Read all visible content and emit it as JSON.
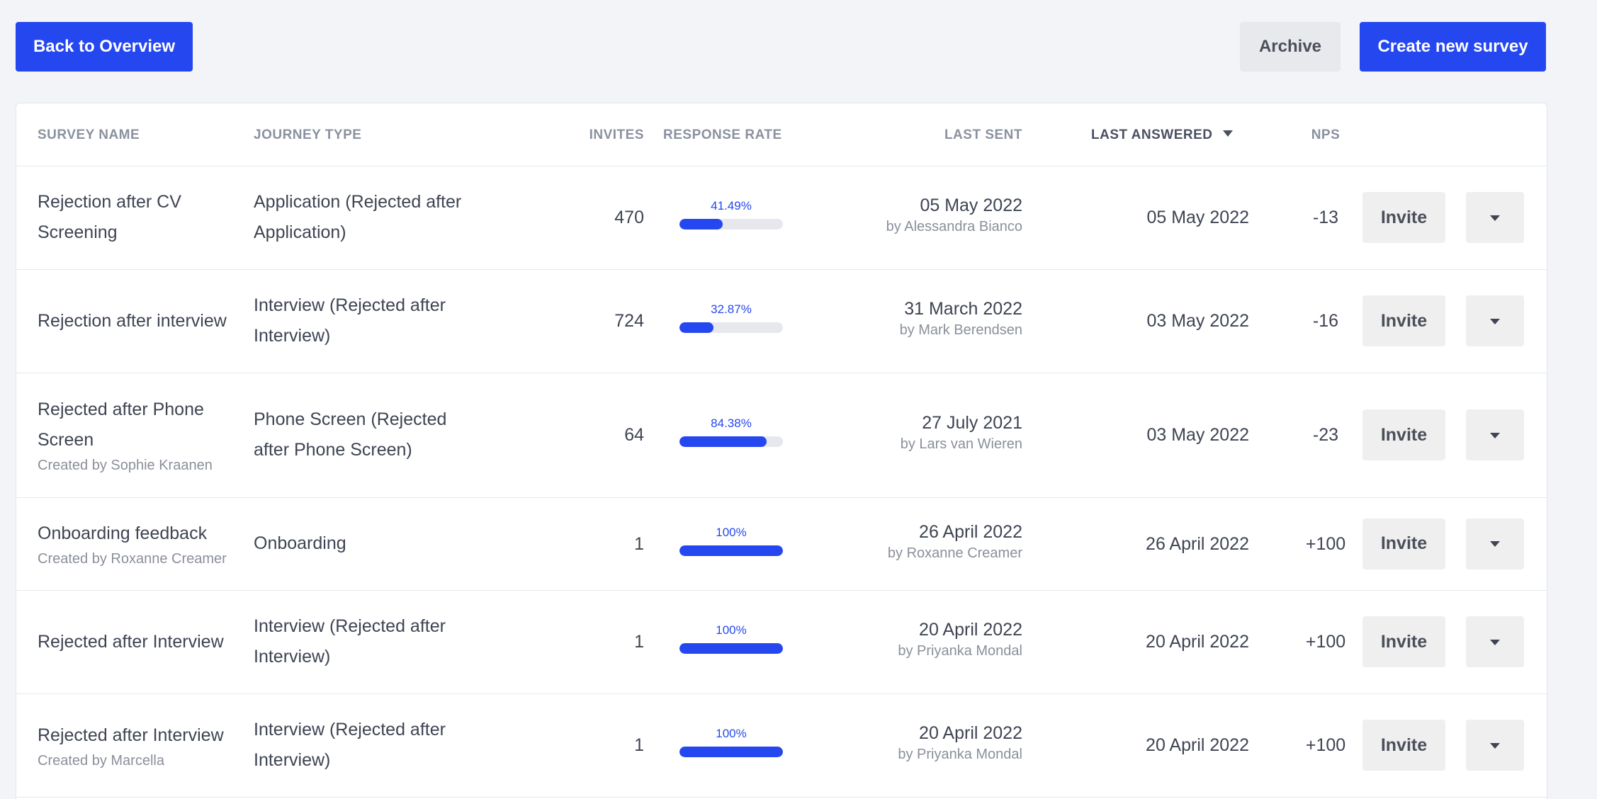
{
  "toolbar": {
    "back_label": "Back to Overview",
    "archive_label": "Archive",
    "create_label": "Create new survey"
  },
  "table": {
    "columns": {
      "survey_name": "SURVEY NAME",
      "journey_type": "JOURNEY TYPE",
      "invites": "INVITES",
      "response_rate": "RESPONSE RATE",
      "last_sent": "LAST SENT",
      "last_answered": "LAST ANSWERED",
      "nps": "NPS"
    },
    "sort": {
      "column": "last_answered",
      "direction": "descending"
    },
    "invite_label": "Invite",
    "rows": [
      {
        "name_lines": [
          "Rejection after CV",
          "Screening"
        ],
        "created_by": "",
        "journey_lines": [
          "Application (Rejected after",
          "Application)"
        ],
        "invites": "470",
        "rate_label": "41.49%",
        "rate": 41.49,
        "last_sent_date": "05 May 2022",
        "last_sent_by": "by Alessandra Bianco",
        "last_answered": "05 May 2022",
        "nps": "-13"
      },
      {
        "name_lines": [
          "Rejection after interview"
        ],
        "created_by": "",
        "journey_lines": [
          "Interview (Rejected after",
          "Interview)"
        ],
        "invites": "724",
        "rate_label": "32.87%",
        "rate": 32.87,
        "last_sent_date": "31 March 2022",
        "last_sent_by": "by Mark Berendsen",
        "last_answered": "03 May 2022",
        "nps": "-16"
      },
      {
        "name_lines": [
          "Rejected after Phone",
          "Screen"
        ],
        "created_by": "Created by Sophie Kraanen",
        "journey_lines": [
          "Phone Screen (Rejected",
          "after Phone Screen)"
        ],
        "invites": "64",
        "rate_label": "84.38%",
        "rate": 84.38,
        "last_sent_date": "27 July 2021",
        "last_sent_by": "by Lars van Wieren",
        "last_answered": "03 May 2022",
        "nps": "-23"
      },
      {
        "name_lines": [
          "Onboarding feedback"
        ],
        "created_by": "Created by Roxanne Creamer",
        "journey_lines": [
          "Onboarding"
        ],
        "invites": "1",
        "rate_label": "100%",
        "rate": 100,
        "last_sent_date": "26 April 2022",
        "last_sent_by": "by Roxanne Creamer",
        "last_answered": "26 April 2022",
        "nps": "+100"
      },
      {
        "name_lines": [
          "Rejected after Interview"
        ],
        "created_by": "",
        "journey_lines": [
          "Interview (Rejected after",
          "Interview)"
        ],
        "invites": "1",
        "rate_label": "100%",
        "rate": 100,
        "last_sent_date": "20 April 2022",
        "last_sent_by": "by Priyanka Mondal",
        "last_answered": "20 April 2022",
        "nps": "+100"
      },
      {
        "name_lines": [
          "Rejected after Interview"
        ],
        "created_by": "Created by Marcella",
        "journey_lines": [
          "Interview (Rejected after",
          "Interview)"
        ],
        "invites": "1",
        "rate_label": "100%",
        "rate": 100,
        "last_sent_date": "20 April 2022",
        "last_sent_by": "by Priyanka Mondal",
        "last_answered": "20 April 2022",
        "nps": "+100"
      }
    ]
  },
  "colors": {
    "accent": "#2547f0",
    "background": "#f3f4f7",
    "secondary_button": "#e8e9ec"
  },
  "icons": {
    "sort": "caret-down-icon",
    "row_menu": "caret-down-icon"
  }
}
